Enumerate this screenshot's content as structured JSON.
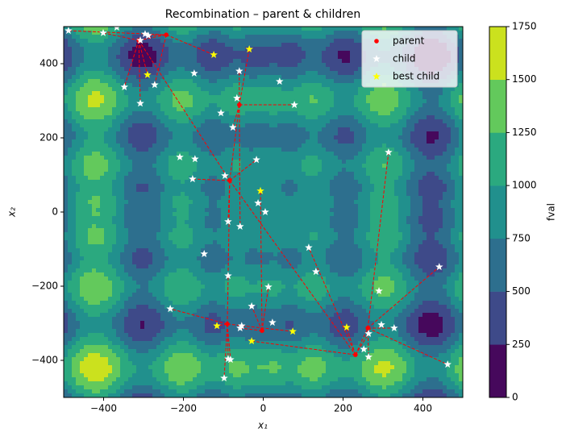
{
  "chart_data": {
    "type": "contour-scatter",
    "title": "Recombination – parent & children",
    "xlabel": "x₁",
    "ylabel": "x₂",
    "xlim": [
      -500,
      500
    ],
    "ylim": [
      -500,
      500
    ],
    "xticks": [
      {
        "value": -400,
        "label": "−400"
      },
      {
        "value": -200,
        "label": "−200"
      },
      0,
      200,
      400
    ],
    "yticks": [
      {
        "value": -400,
        "label": "−400"
      },
      {
        "value": -200,
        "label": "−200"
      },
      0,
      200,
      400
    ],
    "colorbar": {
      "label": "fval",
      "levels": [
        0,
        250,
        500,
        750,
        1000,
        1250,
        1500,
        1750
      ],
      "colors": [
        "#46085c",
        "#3e4a89",
        "#2d6f8e",
        "#21908d",
        "#2ba97f",
        "#63c95c",
        "#cbe11e"
      ]
    },
    "legend": "upper right",
    "series": [
      {
        "name": "parent",
        "color": "#ff0000",
        "marker": "circle",
        "x": [
          -243,
          -312,
          -60,
          -84,
          -90,
          -3,
          231,
          262
        ],
        "y": [
          478,
          463,
          289,
          85,
          -302,
          -320,
          -385,
          -313
        ]
      },
      {
        "name": "child",
        "color": "#ffffff",
        "marker": "star",
        "x": [
          -488,
          -401,
          -367,
          -296,
          -288,
          -308,
          -272,
          -348,
          -308,
          -173,
          -60,
          41,
          -66,
          78,
          -106,
          -76,
          -209,
          -171,
          -17,
          -96,
          -177,
          -13,
          5,
          -88,
          -58,
          -148,
          114,
          132,
          -88,
          13,
          314,
          441,
          290,
          -233,
          -29,
          -54,
          -58,
          23,
          296,
          328,
          264,
          252,
          264,
          -88,
          -82,
          -98,
          462
        ],
        "y": [
          489,
          483,
          498,
          480,
          476,
          463,
          343,
          337,
          293,
          374,
          380,
          352,
          307,
          289,
          267,
          228,
          148,
          143,
          141,
          98,
          89,
          24,
          0,
          -26,
          -39,
          -113,
          -96,
          -161,
          -172,
          -202,
          161,
          -148,
          -213,
          -261,
          -254,
          -307,
          -313,
          -298,
          -304,
          -313,
          -328,
          -370,
          -391,
          -396,
          -398,
          -448,
          -411
        ]
      },
      {
        "name": "best child",
        "color": "#ffff00",
        "marker": "star",
        "x": [
          -124,
          -35,
          -290,
          -7,
          -116,
          74,
          -29,
          209
        ],
        "y": [
          424,
          439,
          370,
          57,
          -307,
          -322,
          -348,
          -311
        ]
      }
    ],
    "links": {
      "color": "#ff0000",
      "style": "dashed",
      "segments": [
        {
          "x": [
            -488,
            -243
          ],
          "y": [
            489,
            478
          ]
        },
        {
          "x": [
            -312,
            -243
          ],
          "y": [
            463,
            478
          ]
        },
        {
          "x": [
            -401,
            -312
          ],
          "y": [
            483,
            463
          ]
        },
        {
          "x": [
            -243,
            -124
          ],
          "y": [
            478,
            424
          ]
        },
        {
          "x": [
            -243,
            -288
          ],
          "y": [
            478,
            476
          ]
        },
        {
          "x": [
            -312,
            -348
          ],
          "y": [
            463,
            337
          ]
        },
        {
          "x": [
            -312,
            -308
          ],
          "y": [
            463,
            293
          ]
        },
        {
          "x": [
            -312,
            -290
          ],
          "y": [
            463,
            370
          ]
        },
        {
          "x": [
            -243,
            -272
          ],
          "y": [
            478,
            343
          ]
        },
        {
          "x": [
            -60,
            -60
          ],
          "y": [
            289,
            380
          ]
        },
        {
          "x": [
            -60,
            -35
          ],
          "y": [
            289,
            439
          ]
        },
        {
          "x": [
            -60,
            78
          ],
          "y": [
            289,
            289
          ]
        },
        {
          "x": [
            -60,
            -76
          ],
          "y": [
            289,
            228
          ]
        },
        {
          "x": [
            -60,
            -84
          ],
          "y": [
            289,
            85
          ]
        },
        {
          "x": [
            -312,
            -84
          ],
          "y": [
            463,
            85
          ]
        },
        {
          "x": [
            -84,
            -17
          ],
          "y": [
            85,
            141
          ]
        },
        {
          "x": [
            -84,
            -177
          ],
          "y": [
            85,
            89
          ]
        },
        {
          "x": [
            -84,
            -88
          ],
          "y": [
            85,
            -26
          ]
        },
        {
          "x": [
            -84,
            -90
          ],
          "y": [
            85,
            -302
          ]
        },
        {
          "x": [
            -60,
            -58
          ],
          "y": [
            289,
            -39
          ]
        },
        {
          "x": [
            -84,
            231
          ],
          "y": [
            85,
            -385
          ]
        },
        {
          "x": [
            -3,
            -7
          ],
          "y": [
            -320,
            57
          ]
        },
        {
          "x": [
            -90,
            -233
          ],
          "y": [
            -302,
            -261
          ]
        },
        {
          "x": [
            -90,
            -116
          ],
          "y": [
            -302,
            -307
          ]
        },
        {
          "x": [
            -90,
            -88
          ],
          "y": [
            -302,
            -396
          ]
        },
        {
          "x": [
            -90,
            -82
          ],
          "y": [
            -302,
            -398
          ]
        },
        {
          "x": [
            -90,
            -98
          ],
          "y": [
            -302,
            -448
          ]
        },
        {
          "x": [
            -90,
            74
          ],
          "y": [
            -302,
            -322
          ]
        },
        {
          "x": [
            -3,
            -58
          ],
          "y": [
            -320,
            -313
          ]
        },
        {
          "x": [
            -3,
            -29
          ],
          "y": [
            -320,
            -254
          ]
        },
        {
          "x": [
            -3,
            13
          ],
          "y": [
            -320,
            -202
          ]
        },
        {
          "x": [
            231,
            -29
          ],
          "y": [
            -385,
            -348
          ]
        },
        {
          "x": [
            231,
            114
          ],
          "y": [
            -385,
            -96
          ]
        },
        {
          "x": [
            231,
            209
          ],
          "y": [
            -385,
            -311
          ]
        },
        {
          "x": [
            231,
            264
          ],
          "y": [
            -385,
            -328
          ]
        },
        {
          "x": [
            231,
            262
          ],
          "y": [
            -385,
            -313
          ]
        },
        {
          "x": [
            262,
            314
          ],
          "y": [
            -313,
            161
          ]
        },
        {
          "x": [
            262,
            441
          ],
          "y": [
            -313,
            -148
          ]
        },
        {
          "x": [
            262,
            462
          ],
          "y": [
            -313,
            -411
          ]
        },
        {
          "x": [
            262,
            328
          ],
          "y": [
            -313,
            -313
          ]
        },
        {
          "x": [
            262,
            264
          ],
          "y": [
            -313,
            -391
          ]
        }
      ]
    }
  }
}
